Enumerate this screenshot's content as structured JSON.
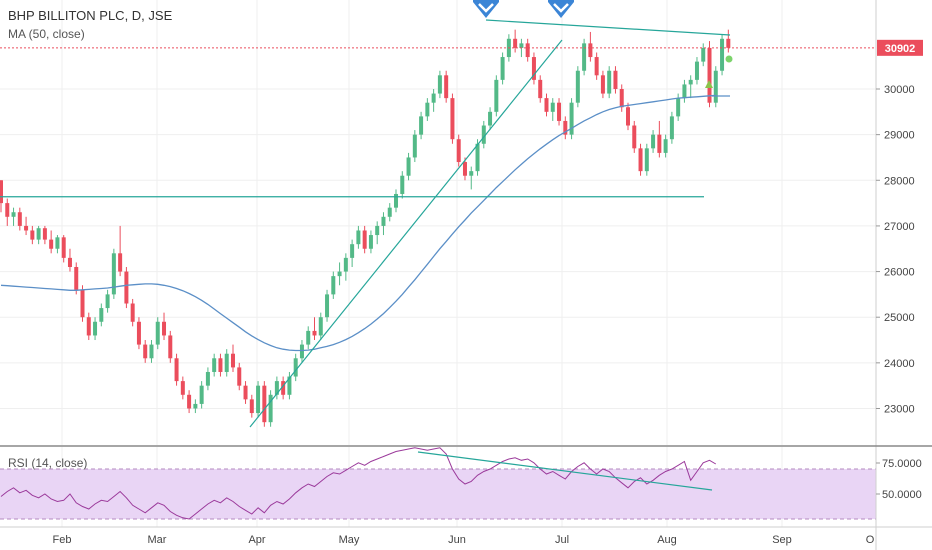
{
  "header": {
    "title": "BHP BILLITON PLC, D, JSE",
    "ma_label": "MA (50, close)",
    "rsi_label": "RSI (14, close)"
  },
  "colors": {
    "up": "#53b987",
    "down": "#eb4d5c",
    "ma": "#5b8fc7",
    "trend": "#26a69a",
    "rsi": "#9b3a9b",
    "rsi_band": "#e9d5f5",
    "arrow": "#3b85d6",
    "last_price": "#eb4d5c"
  },
  "chart_data": {
    "type": "candlestick",
    "title": "BHP BILLITON PLC, D, JSE",
    "last_price": 30902,
    "price_axis": {
      "ylim": [
        22200,
        31950
      ],
      "ticks": [
        23000,
        24000,
        25000,
        26000,
        27000,
        28000,
        29000,
        30000
      ]
    },
    "x_labels": [
      "Feb",
      "Mar",
      "Apr",
      "May",
      "Jun",
      "Jul",
      "Aug",
      "Sep",
      "O"
    ],
    "ohlc": [
      [
        28000,
        28000,
        27300,
        27500
      ],
      [
        27500,
        27600,
        27000,
        27200
      ],
      [
        27200,
        27400,
        27000,
        27300
      ],
      [
        27300,
        27400,
        26900,
        27000
      ],
      [
        27000,
        27200,
        26800,
        26900
      ],
      [
        26900,
        27000,
        26600,
        26700
      ],
      [
        26700,
        27000,
        26600,
        26950
      ],
      [
        26950,
        27000,
        26600,
        26700
      ],
      [
        26700,
        26900,
        26400,
        26500
      ],
      [
        26500,
        26800,
        26400,
        26750
      ],
      [
        26750,
        26800,
        26200,
        26300
      ],
      [
        26300,
        26500,
        26000,
        26100
      ],
      [
        26100,
        26200,
        25500,
        25600
      ],
      [
        25600,
        25700,
        24900,
        25000
      ],
      [
        25000,
        25100,
        24500,
        24600
      ],
      [
        24600,
        25000,
        24500,
        24900
      ],
      [
        24900,
        25300,
        24800,
        25200
      ],
      [
        25200,
        25600,
        25100,
        25500
      ],
      [
        25500,
        26500,
        25400,
        26400
      ],
      [
        26400,
        27000,
        25900,
        26000
      ],
      [
        26000,
        26100,
        25200,
        25300
      ],
      [
        25300,
        25400,
        24800,
        24900
      ],
      [
        24900,
        25000,
        24300,
        24400
      ],
      [
        24400,
        24500,
        24000,
        24100
      ],
      [
        24100,
        24500,
        24000,
        24400
      ],
      [
        24400,
        25000,
        24300,
        24900
      ],
      [
        24900,
        25100,
        24500,
        24600
      ],
      [
        24600,
        24700,
        24000,
        24100
      ],
      [
        24100,
        24200,
        23500,
        23600
      ],
      [
        23600,
        23700,
        23200,
        23300
      ],
      [
        23300,
        23400,
        22900,
        23000
      ],
      [
        23000,
        23200,
        22900,
        23100
      ],
      [
        23100,
        23600,
        23000,
        23500
      ],
      [
        23500,
        23900,
        23400,
        23800
      ],
      [
        23800,
        24200,
        23700,
        24100
      ],
      [
        24100,
        24200,
        23700,
        23800
      ],
      [
        23800,
        24300,
        23700,
        24200
      ],
      [
        24200,
        24400,
        23800,
        23900
      ],
      [
        23900,
        24000,
        23400,
        23500
      ],
      [
        23500,
        23600,
        23100,
        23200
      ],
      [
        23200,
        23300,
        22800,
        22900
      ],
      [
        22900,
        23600,
        22800,
        23500
      ],
      [
        23500,
        23600,
        22600,
        22700
      ],
      [
        22700,
        23400,
        22600,
        23300
      ],
      [
        23300,
        23700,
        23200,
        23600
      ],
      [
        23600,
        23700,
        23200,
        23300
      ],
      [
        23300,
        23800,
        23200,
        23700
      ],
      [
        23700,
        24200,
        23600,
        24100
      ],
      [
        24100,
        24500,
        24000,
        24400
      ],
      [
        24400,
        24800,
        24300,
        24700
      ],
      [
        24700,
        25000,
        24500,
        24600
      ],
      [
        24600,
        25100,
        24500,
        25000
      ],
      [
        25000,
        25600,
        24900,
        25500
      ],
      [
        25500,
        26000,
        25400,
        25900
      ],
      [
        25900,
        26200,
        25700,
        26000
      ],
      [
        26000,
        26400,
        25800,
        26300
      ],
      [
        26300,
        26700,
        26100,
        26600
      ],
      [
        26600,
        27000,
        26500,
        26900
      ],
      [
        26900,
        27000,
        26400,
        26500
      ],
      [
        26500,
        26900,
        26400,
        26800
      ],
      [
        26800,
        27100,
        26600,
        27000
      ],
      [
        27000,
        27300,
        26800,
        27200
      ],
      [
        27200,
        27500,
        27100,
        27400
      ],
      [
        27400,
        27800,
        27300,
        27700
      ],
      [
        27700,
        28200,
        27600,
        28100
      ],
      [
        28100,
        28600,
        28000,
        28500
      ],
      [
        28500,
        29100,
        28400,
        29000
      ],
      [
        29000,
        29500,
        28900,
        29400
      ],
      [
        29400,
        29800,
        29300,
        29700
      ],
      [
        29700,
        30000,
        29500,
        29900
      ],
      [
        29900,
        30400,
        29800,
        30300
      ],
      [
        30300,
        30400,
        29700,
        29800
      ],
      [
        29800,
        29900,
        28800,
        28900
      ],
      [
        28900,
        29000,
        28300,
        28400
      ],
      [
        28400,
        28500,
        28000,
        28100
      ],
      [
        28100,
        28300,
        27800,
        28200
      ],
      [
        28200,
        28900,
        28100,
        28800
      ],
      [
        28800,
        29300,
        28700,
        29200
      ],
      [
        29200,
        29600,
        29100,
        29500
      ],
      [
        29500,
        30300,
        29400,
        30200
      ],
      [
        30200,
        30800,
        30100,
        30700
      ],
      [
        30700,
        31200,
        30600,
        31100
      ],
      [
        31100,
        31300,
        30800,
        30900
      ],
      [
        30900,
        31100,
        30700,
        31000
      ],
      [
        31000,
        31100,
        30600,
        30700
      ],
      [
        30700,
        30800,
        30100,
        30200
      ],
      [
        30200,
        30300,
        29700,
        29800
      ],
      [
        29800,
        29900,
        29400,
        29500
      ],
      [
        29500,
        29800,
        29300,
        29700
      ],
      [
        29700,
        29800,
        29200,
        29300
      ],
      [
        29300,
        29400,
        28900,
        29000
      ],
      [
        29000,
        29800,
        28900,
        29700
      ],
      [
        29700,
        30500,
        29600,
        30400
      ],
      [
        30400,
        31100,
        30300,
        31000
      ],
      [
        31000,
        31250,
        30600,
        30700
      ],
      [
        30700,
        30800,
        30200,
        30300
      ],
      [
        30300,
        30400,
        29800,
        29900
      ],
      [
        29900,
        30500,
        29800,
        30400
      ],
      [
        30400,
        30500,
        29900,
        30000
      ],
      [
        30000,
        30100,
        29500,
        29600
      ],
      [
        29600,
        29700,
        29100,
        29200
      ],
      [
        29200,
        29300,
        28600,
        28700
      ],
      [
        28700,
        28800,
        28100,
        28200
      ],
      [
        28200,
        28800,
        28100,
        28700
      ],
      [
        28700,
        29100,
        28600,
        29000
      ],
      [
        29000,
        29300,
        28500,
        28600
      ],
      [
        28600,
        29000,
        28500,
        28900
      ],
      [
        28900,
        29500,
        28800,
        29400
      ],
      [
        29400,
        29900,
        29300,
        29800
      ],
      [
        29800,
        30200,
        29700,
        30100
      ],
      [
        30100,
        30300,
        29800,
        30200
      ],
      [
        30200,
        30700,
        30100,
        30600
      ],
      [
        30600,
        31000,
        30500,
        30900
      ],
      [
        30900,
        31050,
        29600,
        29700
      ],
      [
        29700,
        30500,
        29600,
        30400
      ],
      [
        30400,
        31200,
        30300,
        31100
      ],
      [
        31100,
        31300,
        30800,
        30902
      ]
    ],
    "ma": [
      25700,
      25690,
      25680,
      25670,
      25660,
      25650,
      25640,
      25630,
      25620,
      25610,
      25600,
      25590,
      25590,
      25600,
      25610,
      25620,
      25630,
      25640,
      25660,
      25680,
      25700,
      25710,
      25720,
      25730,
      25730,
      25720,
      25700,
      25670,
      25630,
      25580,
      25520,
      25450,
      25370,
      25280,
      25180,
      25080,
      24980,
      24880,
      24780,
      24680,
      24590,
      24510,
      24440,
      24380,
      24330,
      24300,
      24280,
      24270,
      24270,
      24280,
      24300,
      24330,
      24360,
      24400,
      24450,
      24510,
      24580,
      24660,
      24750,
      24850,
      24960,
      25080,
      25210,
      25350,
      25500,
      25660,
      25820,
      25990,
      26160,
      26330,
      26500,
      26660,
      26820,
      26980,
      27130,
      27280,
      27420,
      27560,
      27700,
      27840,
      27970,
      28100,
      28230,
      28350,
      28470,
      28580,
      28690,
      28790,
      28890,
      28980,
      29060,
      29140,
      29220,
      29300,
      29370,
      29440,
      29500,
      29550,
      29590,
      29620,
      29640,
      29660,
      29680,
      29700,
      29720,
      29740,
      29760,
      29780,
      29800,
      29810,
      29820,
      29830,
      29840,
      29850,
      29860
    ],
    "rsi": [
      48,
      52,
      55,
      51,
      53,
      49,
      47,
      50,
      46,
      44,
      45,
      50,
      43,
      40,
      38,
      42,
      45,
      44,
      48,
      52,
      47,
      41,
      38,
      35,
      39,
      43,
      41,
      36,
      33,
      31,
      30,
      34,
      38,
      42,
      45,
      43,
      47,
      44,
      40,
      37,
      34,
      39,
      35,
      41,
      44,
      42,
      46,
      51,
      55,
      58,
      56,
      60,
      64,
      67,
      66,
      69,
      72,
      75,
      73,
      76,
      78,
      80,
      82,
      84,
      85,
      86,
      87,
      86,
      85,
      86,
      87,
      82,
      70,
      62,
      58,
      60,
      65,
      68,
      70,
      73,
      76,
      78,
      79,
      77,
      78,
      75,
      70,
      66,
      68,
      65,
      62,
      68,
      72,
      75,
      70,
      66,
      70,
      68,
      63,
      59,
      55,
      60,
      63,
      58,
      61,
      65,
      68,
      70,
      73,
      76,
      61,
      68,
      75,
      77,
      74
    ],
    "rsi_levels": {
      "upper": 70,
      "lower": 30
    },
    "rsi_ticks": [
      "75.0000",
      "50.0000"
    ]
  }
}
